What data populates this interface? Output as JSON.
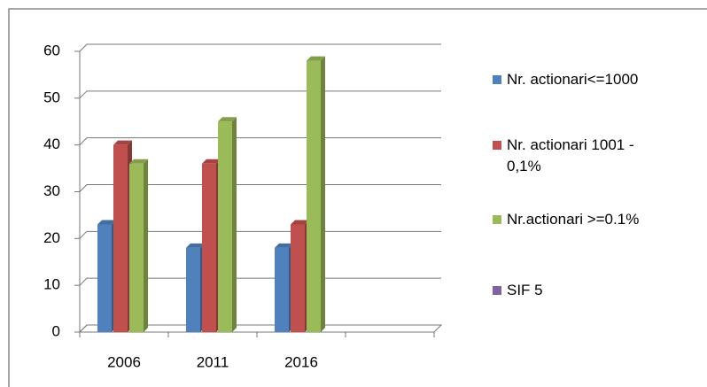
{
  "chart_data": {
    "type": "bar3d",
    "categories": [
      "2006",
      "2011",
      "2016",
      null
    ],
    "series": [
      {
        "name": "Nr. actionari<=1000",
        "color": "#4f81bd",
        "values": [
          23,
          18,
          18,
          null
        ]
      },
      {
        "name": "Nr. actionari 1001 - 0,1%",
        "color": "#c0504d",
        "values": [
          40,
          36,
          23,
          null
        ]
      },
      {
        "name": "Nr.actionari >=0.1%",
        "color": "#9bbb59",
        "values": [
          36,
          45,
          58,
          null
        ]
      },
      {
        "name": "SIF 5",
        "color": "#8064a2",
        "values": [
          null,
          null,
          null,
          null
        ]
      }
    ],
    "ylim": [
      0,
      60
    ],
    "yticks": [
      0,
      10,
      20,
      30,
      40,
      50,
      60
    ],
    "grid": true,
    "legend": "right"
  }
}
